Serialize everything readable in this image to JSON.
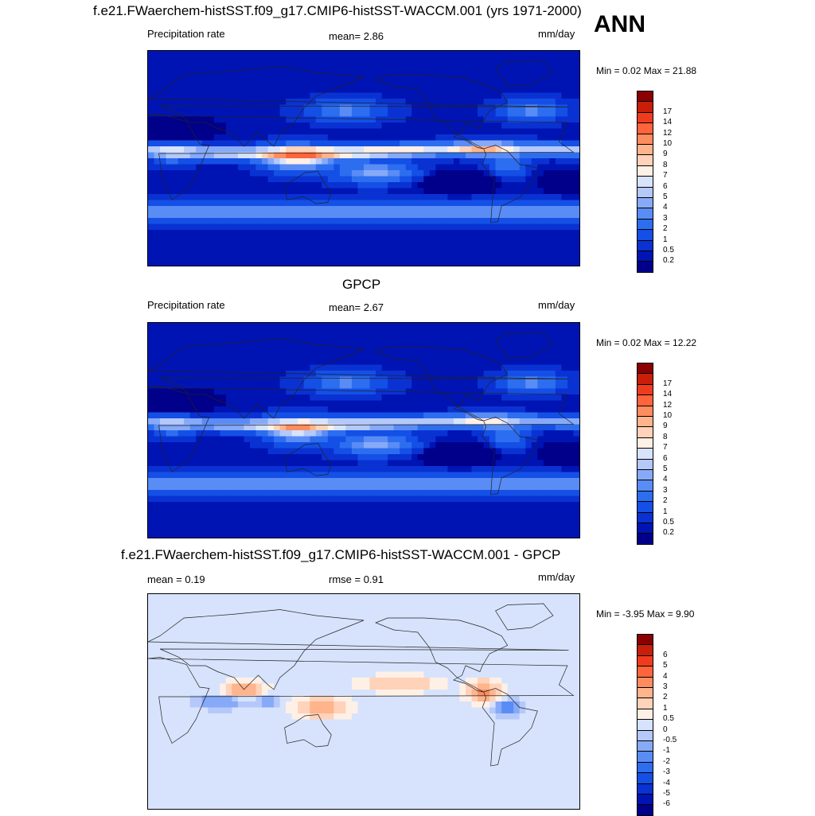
{
  "season": "ANN",
  "panels": [
    {
      "title": "f.e21.FWaerchem-histSST.f09_g17.CMIP6-histSST-WACCM.001 (yrs 1971-2000)",
      "left_label": "Precipitation rate",
      "center_label": "mean=   2.86",
      "units": "mm/day",
      "minmax": "Min =   0.02 Max =  21.88",
      "kind": "field",
      "itcz_strength": 1.25
    },
    {
      "title": "GPCP",
      "left_label": "Precipitation rate",
      "center_label": "mean=   2.67",
      "units": "mm/day",
      "minmax": "Min =   0.02 Max =  12.22",
      "kind": "field",
      "itcz_strength": 1.0
    },
    {
      "title": "f.e21.FWaerchem-histSST.f09_g17.CMIP6-histSST-WACCM.001 - GPCP",
      "left_label": "mean =   0.19",
      "center_label": "rmse =   0.91",
      "units": "mm/day",
      "minmax": "Min =  -3.95 Max =   9.90",
      "kind": "diff"
    }
  ],
  "chart_data": [
    {
      "type": "heatmap",
      "title": "f.e21.FWaerchem-histSST.f09_g17.CMIP6-histSST-WACCM.001 (yrs 1971-2000)",
      "variable": "Precipitation rate",
      "units": "mm/day",
      "mean": 2.86,
      "min": 0.02,
      "max": 21.88,
      "colorbar_levels": [
        "0.2",
        "0.5",
        "1",
        "2",
        "3",
        "4",
        "5",
        "6",
        "7",
        "8",
        "9",
        "10",
        "12",
        "14",
        "17"
      ],
      "colorbar_colors": [
        "#00008b",
        "#0014b4",
        "#0a32d2",
        "#1450e6",
        "#2d6ef0",
        "#5a8cf5",
        "#87aaf8",
        "#b4c8fa",
        "#d7e3fc",
        "#fff0e6",
        "#ffd2b9",
        "#ffb48c",
        "#ff8c5f",
        "#ff643c",
        "#f03c1e",
        "#c81e0a",
        "#8b0000"
      ]
    },
    {
      "type": "heatmap",
      "title": "GPCP",
      "variable": "Precipitation rate",
      "units": "mm/day",
      "mean": 2.67,
      "min": 0.02,
      "max": 12.22,
      "colorbar_levels": [
        "0.2",
        "0.5",
        "1",
        "2",
        "3",
        "4",
        "5",
        "6",
        "7",
        "8",
        "9",
        "10",
        "12",
        "14",
        "17"
      ],
      "colorbar_colors": [
        "#00008b",
        "#0014b4",
        "#0a32d2",
        "#1450e6",
        "#2d6ef0",
        "#5a8cf5",
        "#87aaf8",
        "#b4c8fa",
        "#d7e3fc",
        "#fff0e6",
        "#ffd2b9",
        "#ffb48c",
        "#ff8c5f",
        "#ff643c",
        "#f03c1e",
        "#c81e0a",
        "#8b0000"
      ]
    },
    {
      "type": "heatmap",
      "title": "f.e21.FWaerchem-histSST.f09_g17.CMIP6-histSST-WACCM.001 - GPCP",
      "units": "mm/day",
      "mean": 0.19,
      "rmse": 0.91,
      "min": -3.95,
      "max": 9.9,
      "colorbar_levels": [
        "-6",
        "-5",
        "-4",
        "-3",
        "-2",
        "-1",
        "-0.5",
        "0",
        "0.5",
        "1",
        "2",
        "3",
        "4",
        "5",
        "6"
      ],
      "colorbar_colors": [
        "#00008b",
        "#0014b4",
        "#0a32d2",
        "#1450e6",
        "#2d6ef0",
        "#5a8cf5",
        "#87aaf8",
        "#b4c8fa",
        "#d7e3fc",
        "#fff0e6",
        "#ffd2b9",
        "#ffb48c",
        "#ff8c5f",
        "#ff643c",
        "#f03c1e",
        "#c81e0a",
        "#8b0000"
      ]
    }
  ]
}
